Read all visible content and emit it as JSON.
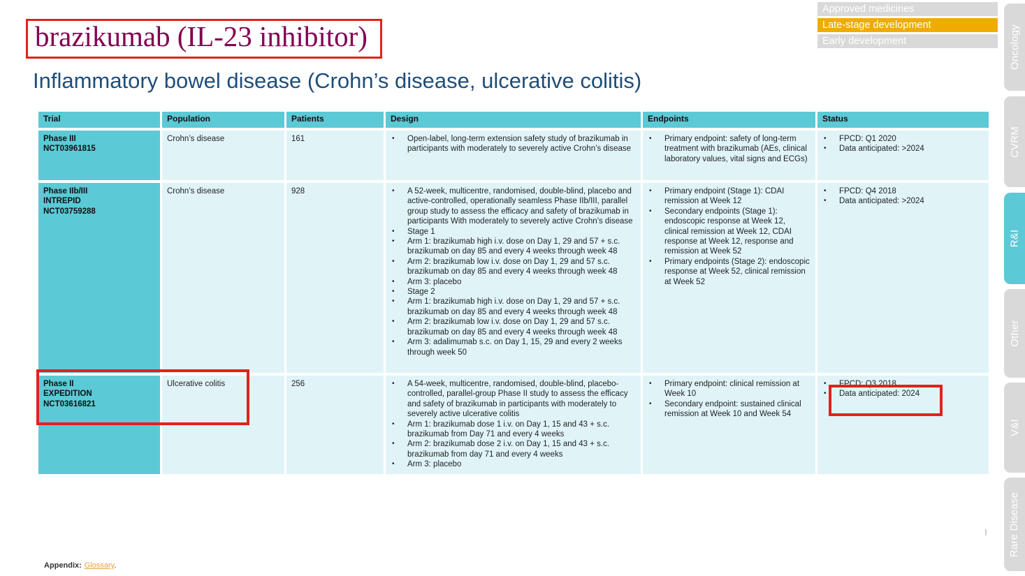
{
  "page": {
    "title": "brazikumab (IL-23 inhibitor)",
    "subtitle": "Inflammatory bowel disease (Crohn’s disease, ulcerative colitis)",
    "appendix_label": "Appendix:",
    "glossary_link": "Glossary",
    "glossary_suffix": "."
  },
  "legend": {
    "items": [
      {
        "label": "Approved medicines",
        "active": false
      },
      {
        "label": "Late-stage development",
        "active": true
      },
      {
        "label": "Early development",
        "active": false
      }
    ]
  },
  "side_tabs": [
    {
      "label": "Oncology",
      "active": false
    },
    {
      "label": "CVRM",
      "active": false
    },
    {
      "label": "R&I",
      "active": true
    },
    {
      "label": "Other",
      "active": false
    },
    {
      "label": "V&I",
      "active": false
    },
    {
      "label": "Rare Disease",
      "active": false
    }
  ],
  "table": {
    "headers": [
      "Trial",
      "Population",
      "Patients",
      "Design",
      "Endpoints",
      "Status"
    ],
    "rows": [
      {
        "trial": [
          "Phase III",
          "NCT03961815"
        ],
        "population": "Crohn’s disease",
        "patients": "161",
        "design": [
          "Open-label, long-term extension safety study of brazikumab in participants with moderately to severely active Crohn’s disease"
        ],
        "endpoints": [
          "Primary endpoint: safety of long-term treatment with brazikumab (AEs, clinical laboratory values, vital signs and ECGs)"
        ],
        "status": [
          "FPCD: Q1 2020",
          "Data anticipated: >2024"
        ]
      },
      {
        "trial": [
          "Phase IIb/III",
          "INTREPID",
          "NCT03759288"
        ],
        "population": "Crohn’s disease",
        "patients": "928",
        "design": [
          "A 52-week, multicentre, randomised, double-blind, placebo and active-controlled, operationally seamless Phase IIb/III, parallel group study to assess the efficacy and safety of brazikumab in participants With moderately to severely active Crohn’s disease",
          "Stage 1",
          "Arm 1: brazikumab high i.v. dose on Day 1, 29 and 57 + s.c. brazikumab on day 85 and every 4 weeks through week 48",
          "Arm 2: brazikumab low i.v. dose on Day 1, 29 and 57 s.c. brazikumab on day 85 and every 4 weeks through week 48",
          "Arm 3: placebo",
          "Stage 2",
          "Arm 1: brazikumab high i.v. dose on Day 1, 29 and 57 + s.c. brazikumab on day 85 and every 4 weeks through week 48",
          "Arm 2: brazikumab low i.v. dose on Day 1, 29 and 57 s.c. brazikumab on day 85 and every 4 weeks through week 48",
          "Arm 3: adalimumab s.c. on Day 1, 15, 29 and every 2 weeks through week 50"
        ],
        "endpoints": [
          "Primary endpoint (Stage 1): CDAI remission at Week 12",
          "Secondary endpoints (Stage 1): endoscopic response at Week 12, clinical remission at Week 12, CDAI response at Week 12, response and remission at Week 52",
          "Primary endpoints (Stage 2): endoscopic response at Week 52, clinical remission at Week 52"
        ],
        "status": [
          "FPCD: Q4 2018",
          "Data anticipated: >2024"
        ]
      },
      {
        "trial": [
          "Phase II",
          "EXPEDITION",
          "NCT03616821"
        ],
        "population": "Ulcerative colitis",
        "patients": "256",
        "design": [
          "A 54-week, multicentre, randomised, double-blind, placebo-controlled, parallel-group Phase II study to assess the efficacy and safety of brazikumab in participants with moderately to severely active ulcerative colitis",
          "Arm 1: brazikumab dose 1 i.v. on Day 1, 15 and 43 + s.c. brazikumab from Day 71 and every 4 weeks",
          "Arm 2: brazikumab dose 2 i.v. on Day 1, 15 and 43 + s.c. brazikumab from day 71 and every 4 weeks",
          "Arm 3: placebo"
        ],
        "endpoints": [
          "Primary endpoint: clinical remission at Week 10",
          "Secondary endpoint: sustained clinical remission at Week 10 and Week 54"
        ],
        "status": [
          "FPCD: Q3 2018",
          "Data anticipated: 2024"
        ]
      }
    ]
  },
  "colors": {
    "table_teal": "#5CC9D6",
    "cell_background": "#E0F4F8",
    "highlight_gold": "#F0AB00",
    "inactive_gray": "#D9D9D9",
    "title_mulberry": "#830051",
    "subtitle_navy": "#1F4E79",
    "annotation_red": "#E0231C",
    "link_gold": "#E9A23C"
  }
}
